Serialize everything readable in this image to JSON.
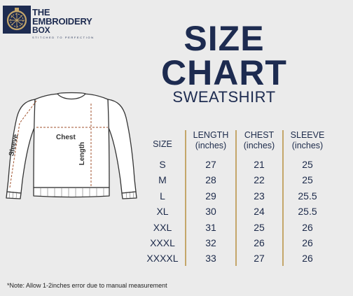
{
  "brand": {
    "line1": "THE",
    "line2": "EMBROIDERY",
    "line3": "BOX",
    "tagline": "STITCHED TO PERFECTION"
  },
  "title": {
    "line1": "SIZE",
    "line2": "CHART",
    "subtitle": "SWEATSHIRT"
  },
  "diagram": {
    "chest_label": "Chest",
    "length_label": "Length",
    "sleeve_label": "Sleeve"
  },
  "table": {
    "headers": [
      {
        "line1": "SIZE",
        "line2": ""
      },
      {
        "line1": "LENGTH",
        "line2": "(inches)"
      },
      {
        "line1": "CHEST",
        "line2": "(inches)"
      },
      {
        "line1": "SLEEVE",
        "line2": "(inches)"
      }
    ],
    "rows": [
      [
        "S",
        "27",
        "21",
        "25"
      ],
      [
        "M",
        "28",
        "22",
        "25"
      ],
      [
        "L",
        "29",
        "23",
        "25.5"
      ],
      [
        "XL",
        "30",
        "24",
        "25.5"
      ],
      [
        "XXL",
        "31",
        "25",
        "26"
      ],
      [
        "XXXL",
        "32",
        "26",
        "26"
      ],
      [
        "XXXXL",
        "33",
        "27",
        "26"
      ]
    ]
  },
  "note": "*Note: Allow 1-2inches error due to manual measurement",
  "colors": {
    "navy": "#1d2b50",
    "gold": "#c4a66a",
    "dash": "#a0522d"
  }
}
